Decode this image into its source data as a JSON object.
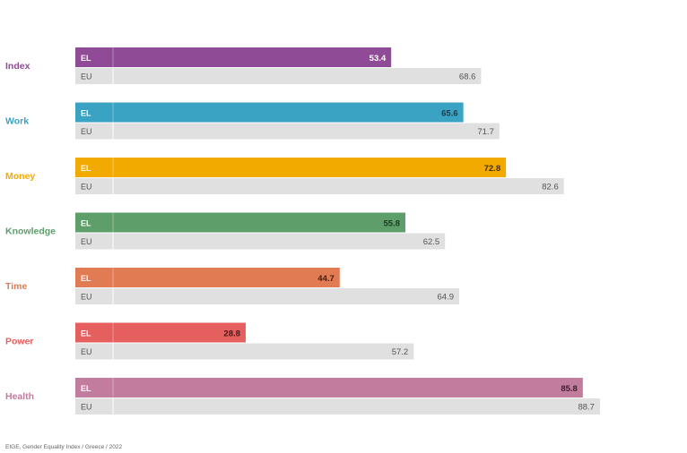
{
  "chart_data": {
    "type": "bar",
    "orientation": "horizontal",
    "categories": [
      "Index",
      "Work",
      "Money",
      "Knowledge",
      "Time",
      "Power",
      "Health"
    ],
    "series": [
      {
        "name": "EL",
        "values": [
          53.4,
          65.6,
          72.8,
          55.8,
          44.7,
          28.8,
          85.8
        ]
      },
      {
        "name": "EU",
        "values": [
          68.6,
          71.7,
          82.6,
          62.5,
          64.9,
          57.2,
          88.7
        ]
      }
    ],
    "category_colors": [
      "#8f4b95",
      "#3aa2c3",
      "#f2a900",
      "#5e9e6b",
      "#e07b53",
      "#e55f5f",
      "#c27c9d"
    ],
    "el_label_colors": [
      "#ffffff",
      "#1d3b47",
      "#4a3000",
      "#1e3a24",
      "#4a2212",
      "#4a1515",
      "#3e1f2d"
    ],
    "eu_bar_color": "#e0e0e0",
    "xlim": [
      0,
      100
    ],
    "grid": false,
    "legend": "none"
  },
  "source": "EIGE, Gender Equality Index / Greece / 2022"
}
